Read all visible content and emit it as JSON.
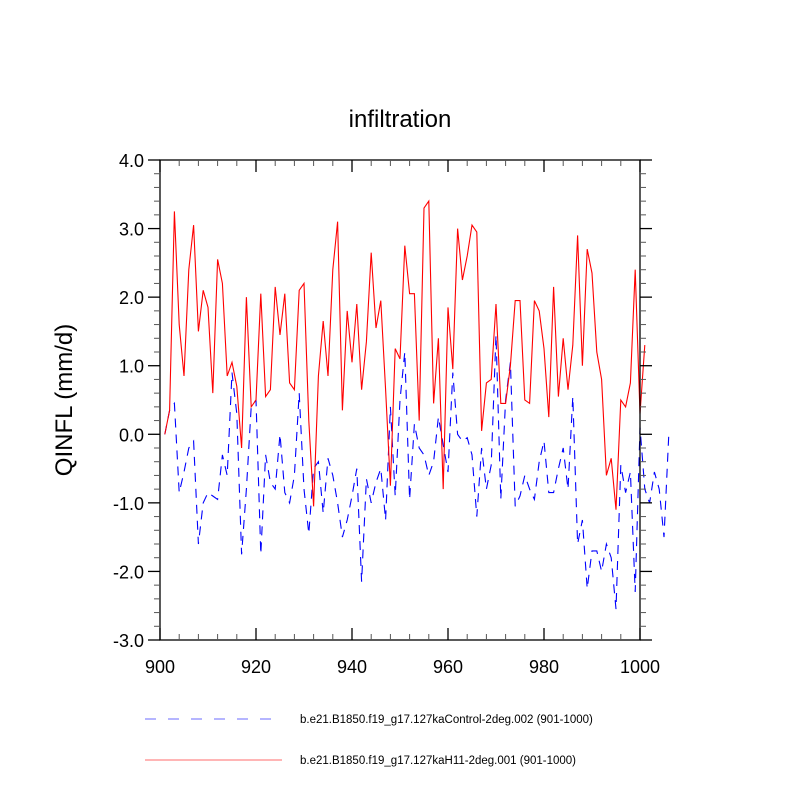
{
  "chart_data": {
    "type": "line",
    "title": "infiltration",
    "xlabel": "",
    "ylabel": "QINFL  (mm/d)",
    "xlim": [
      900,
      1000
    ],
    "ylim": [
      -3.0,
      4.0
    ],
    "x_ticks": [
      900,
      920,
      940,
      960,
      980,
      1000
    ],
    "x_tick_labels": [
      "900",
      "920",
      "940",
      "960",
      "980",
      "1000"
    ],
    "y_ticks": [
      -3.0,
      -2.0,
      -1.0,
      0.0,
      1.0,
      2.0,
      3.0,
      4.0
    ],
    "y_tick_labels": [
      "-3.0",
      "-2.0",
      "-1.0",
      "0.0",
      "1.0",
      "2.0",
      "3.0",
      "4.0"
    ],
    "grid": false,
    "legend_position": "bottom",
    "x_start": 901,
    "series": [
      {
        "name": "b.e21.B1850.f19_g17.127kaControl-2deg.002 (901-1000)",
        "color": "#0000ff",
        "style": "dashed",
        "values": [
          0.0,
          0.35,
          0.45,
          -0.85,
          -0.55,
          -0.2,
          -0.1,
          -1.6,
          -1.0,
          -0.85,
          -0.9,
          -0.95,
          -0.3,
          -0.6,
          0.9,
          0.3,
          -1.75,
          -0.8,
          0.4,
          0.5,
          -1.75,
          -0.3,
          -0.7,
          -0.8,
          0.0,
          -0.85,
          -1.0,
          -0.6,
          0.6,
          -0.8,
          -1.45,
          -0.5,
          -0.4,
          -1.15,
          -0.35,
          -0.6,
          -1.0,
          -1.5,
          -1.25,
          -0.9,
          -0.5,
          -2.15,
          -0.65,
          -1.0,
          -0.7,
          -0.5,
          -1.25,
          0.4,
          -0.9,
          0.5,
          1.2,
          -0.95,
          0.15,
          -0.2,
          -0.3,
          -0.6,
          -0.4,
          0.25,
          -0.15,
          -0.55,
          0.9,
          0.0,
          -0.1,
          -0.05,
          -0.3,
          -1.2,
          -0.2,
          -0.8,
          -0.45,
          1.45,
          -0.95,
          0.5,
          1.05,
          -1.05,
          -0.9,
          -0.6,
          -0.8,
          -0.95,
          -0.4,
          -0.1,
          -0.85,
          -0.85,
          -0.5,
          -0.2,
          -0.8,
          0.55,
          -1.6,
          -1.25,
          -2.25,
          -1.7,
          -1.7,
          -2.0,
          -1.6,
          -1.8,
          -2.55,
          -0.45,
          -0.85,
          -0.55,
          -2.3,
          0.1,
          -0.8,
          -1.0,
          -0.55,
          -0.8,
          -1.5,
          0.0
        ]
      },
      {
        "name": "b.e21.B1850.f19_g17.127kaH11-2deg.001 (901-1000)",
        "color": "#ff0000",
        "style": "solid",
        "values": [
          0.0,
          0.35,
          3.25,
          1.6,
          0.85,
          2.4,
          3.05,
          1.5,
          2.1,
          1.85,
          0.6,
          2.55,
          2.2,
          0.85,
          1.05,
          0.7,
          -0.2,
          2.0,
          0.4,
          0.5,
          2.05,
          0.55,
          0.65,
          2.15,
          1.45,
          2.05,
          0.75,
          0.65,
          2.1,
          2.2,
          0.2,
          -1.05,
          0.85,
          1.65,
          0.85,
          2.4,
          3.1,
          0.35,
          1.8,
          1.05,
          1.9,
          0.65,
          1.35,
          2.65,
          1.55,
          1.95,
          0.65,
          -0.75,
          1.25,
          1.1,
          2.75,
          2.05,
          2.05,
          0.2,
          3.3,
          3.4,
          0.45,
          1.4,
          -0.8,
          1.85,
          0.95,
          3.0,
          2.25,
          2.6,
          3.05,
          2.95,
          0.05,
          0.75,
          0.8,
          1.9,
          0.45,
          0.45,
          1.0,
          1.95,
          1.95,
          0.5,
          0.45,
          1.95,
          1.8,
          1.25,
          0.25,
          2.15,
          0.55,
          1.4,
          0.65,
          1.3,
          2.9,
          1.0,
          2.7,
          2.35,
          1.2,
          0.8,
          -0.6,
          -0.35,
          -1.1,
          0.5,
          0.4,
          0.75,
          2.4,
          0.3,
          1.3
        ]
      }
    ]
  }
}
